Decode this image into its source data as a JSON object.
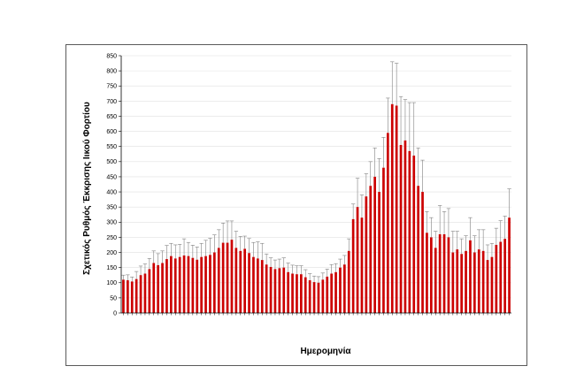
{
  "chart_data": {
    "type": "bar",
    "title": "",
    "xlabel": "Ημερομηνία",
    "ylabel": "Σχετικός Ρυθμός Έκκρισης Ιικού Φορτίου",
    "ylim": [
      0,
      850
    ],
    "ytick_step": 50,
    "grid": true,
    "legend": "none",
    "error_bars": true,
    "colors": {
      "bar": "#cc0000",
      "error": "#808080",
      "grid": "#e0e0e0",
      "axis": "#000000"
    },
    "series": [
      {
        "values": [
          110,
          108,
          104,
          112,
          125,
          130,
          145,
          165,
          158,
          165,
          178,
          188,
          180,
          185,
          190,
          188,
          182,
          176,
          185,
          188,
          192,
          200,
          215,
          232,
          232,
          242,
          215,
          205,
          212,
          198,
          185,
          180,
          175,
          160,
          152,
          145,
          148,
          150,
          135,
          130,
          128,
          128,
          118,
          108,
          102,
          100,
          110,
          120,
          130,
          135,
          150,
          160,
          205,
          310,
          350,
          315,
          385,
          420,
          450,
          400,
          480,
          595,
          690,
          685,
          555,
          570,
          535,
          520,
          420,
          400,
          265,
          250,
          215,
          260,
          260,
          250,
          200,
          210,
          195,
          205,
          240,
          200,
          210,
          205,
          175,
          185,
          225,
          235,
          245,
          315
        ],
        "errors": [
          15,
          18,
          15,
          25,
          30,
          32,
          35,
          40,
          38,
          40,
          45,
          42,
          45,
          42,
          55,
          45,
          42,
          42,
          45,
          52,
          55,
          58,
          60,
          65,
          72,
          62,
          55,
          48,
          42,
          48,
          48,
          55,
          55,
          35,
          30,
          30,
          30,
          32,
          30,
          28,
          28,
          28,
          25,
          22,
          20,
          20,
          22,
          25,
          30,
          28,
          28,
          30,
          40,
          50,
          95,
          75,
          75,
          80,
          95,
          110,
          100,
          115,
          140,
          140,
          160,
          135,
          160,
          175,
          125,
          105,
          70,
          65,
          55,
          95,
          75,
          95,
          70,
          60,
          50,
          50,
          75,
          55,
          65,
          70,
          50,
          45,
          55,
          70,
          75,
          95
        ]
      }
    ]
  }
}
